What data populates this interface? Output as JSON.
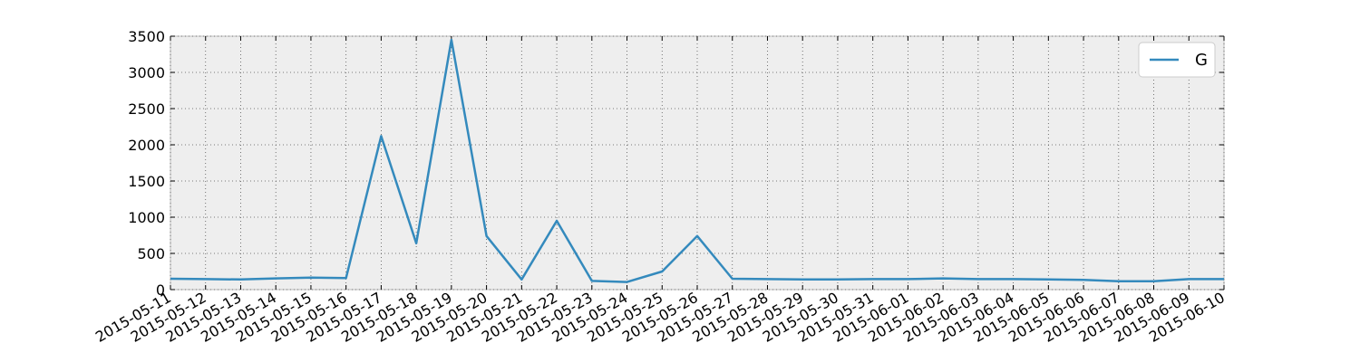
{
  "chart_data": {
    "type": "line",
    "title": "",
    "xlabel": "",
    "ylabel": "",
    "x": [
      "2015-05-11",
      "2015-05-12",
      "2015-05-13",
      "2015-05-14",
      "2015-05-15",
      "2015-05-16",
      "2015-05-17",
      "2015-05-18",
      "2015-05-19",
      "2015-05-20",
      "2015-05-21",
      "2015-05-22",
      "2015-05-23",
      "2015-05-24",
      "2015-05-25",
      "2015-05-26",
      "2015-05-27",
      "2015-05-28",
      "2015-05-29",
      "2015-05-30",
      "2015-05-31",
      "2015-06-01",
      "2015-06-02",
      "2015-06-03",
      "2015-06-04",
      "2015-06-05",
      "2015-06-06",
      "2015-06-07",
      "2015-06-08",
      "2015-06-09",
      "2015-06-10"
    ],
    "series": [
      {
        "name": "G",
        "color": "#348abd",
        "values": [
          150,
          145,
          140,
          155,
          165,
          160,
          2120,
          640,
          3450,
          740,
          140,
          950,
          120,
          105,
          250,
          740,
          150,
          145,
          140,
          140,
          145,
          145,
          155,
          145,
          145,
          140,
          135,
          115,
          115,
          145,
          145
        ]
      }
    ],
    "ylim": [
      0,
      3500
    ],
    "yticks": [
      0,
      500,
      1000,
      1500,
      2000,
      2500,
      3000,
      3500
    ],
    "grid": true,
    "legend_position": "top-right",
    "background_color": "#eeeeee"
  }
}
